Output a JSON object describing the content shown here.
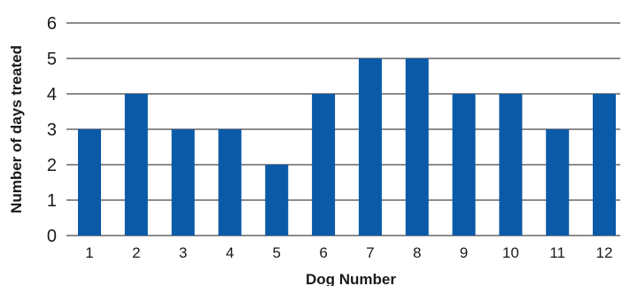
{
  "chart_data": {
    "type": "bar",
    "categories": [
      "1",
      "2",
      "3",
      "4",
      "5",
      "6",
      "7",
      "8",
      "9",
      "10",
      "11",
      "12"
    ],
    "values": [
      3,
      4,
      3,
      3,
      2,
      4,
      5,
      5,
      4,
      4,
      3,
      4
    ],
    "xlabel": "Dog Number",
    "ylabel": "Number of days treated",
    "ylim": [
      0,
      6
    ],
    "yticks": [
      0,
      1,
      2,
      3,
      4,
      5,
      6
    ],
    "grid": true,
    "bar_color": "#0a5aa8"
  }
}
